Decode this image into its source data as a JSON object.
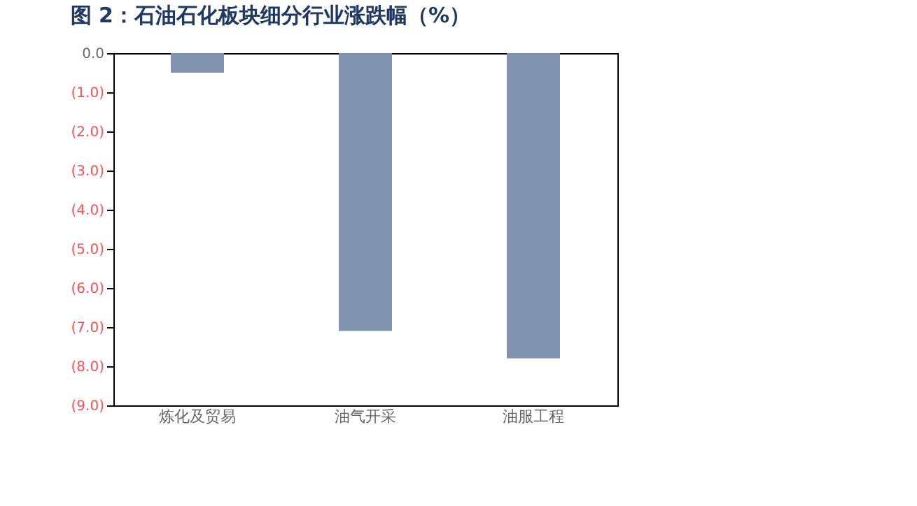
{
  "chart_data": {
    "type": "bar",
    "title": "图 2：石油石化板块细分行业涨跌幅（%）",
    "categories": [
      "炼化及贸易",
      "油气开采",
      "油服工程"
    ],
    "series": [
      {
        "color": "#8293af",
        "values": [
          -0.5,
          -7.1,
          -7.8
        ]
      }
    ],
    "ylim": [
      -9,
      0
    ],
    "yticks": [
      {
        "value": 0,
        "label": "0.0"
      },
      {
        "value": -1,
        "label": "(1.0)"
      },
      {
        "value": -2,
        "label": "(2.0)"
      },
      {
        "value": -3,
        "label": "(3.0)"
      },
      {
        "value": -4,
        "label": "(4.0)"
      },
      {
        "value": -5,
        "label": "(5.0)"
      },
      {
        "value": -6,
        "label": "(6.0)"
      },
      {
        "value": -7,
        "label": "(7.0)"
      },
      {
        "value": -8,
        "label": "(8.0)"
      },
      {
        "value": -9,
        "label": "(9.0)"
      }
    ],
    "grid": false
  }
}
